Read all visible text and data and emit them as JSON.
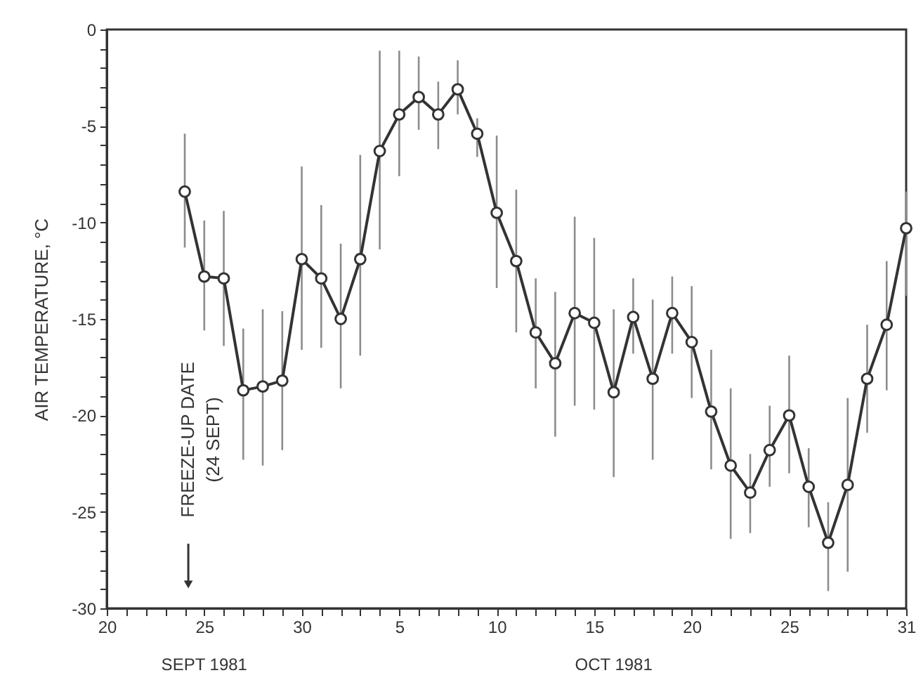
{
  "chart_data": {
    "type": "line",
    "ylabel": "AIR TEMPERATURE, °C",
    "x": [
      "1981-09-24",
      "1981-09-25",
      "1981-09-26",
      "1981-09-27",
      "1981-09-28",
      "1981-09-29",
      "1981-09-30",
      "1981-10-01",
      "1981-10-02",
      "1981-10-03",
      "1981-10-04",
      "1981-10-05",
      "1981-10-06",
      "1981-10-07",
      "1981-10-08",
      "1981-10-09",
      "1981-10-10",
      "1981-10-11",
      "1981-10-12",
      "1981-10-13",
      "1981-10-14",
      "1981-10-15",
      "1981-10-16",
      "1981-10-17",
      "1981-10-18",
      "1981-10-19",
      "1981-10-20",
      "1981-10-21",
      "1981-10-22",
      "1981-10-23",
      "1981-10-24",
      "1981-10-25",
      "1981-10-26",
      "1981-10-27",
      "1981-10-28",
      "1981-10-29",
      "1981-10-30",
      "1981-10-31"
    ],
    "series": [
      {
        "color": "#333333",
        "values": [
          -8.4,
          -12.8,
          -12.9,
          -18.7,
          -18.5,
          -18.2,
          -11.9,
          -12.9,
          -15.0,
          -11.9,
          -6.3,
          -4.4,
          -3.5,
          -4.4,
          -3.1,
          -5.4,
          -9.5,
          -12.0,
          -15.7,
          -17.3,
          -14.7,
          -15.2,
          -18.8,
          -14.9,
          -18.1,
          -14.7,
          -16.2,
          -19.8,
          -22.6,
          -24.0,
          -21.8,
          -20.0,
          -23.7,
          -26.6,
          -23.6,
          -18.1,
          -15.3,
          -10.3
        ],
        "errors": [
          [
            -11.3,
            -5.4
          ],
          [
            -15.6,
            -9.9
          ],
          [
            -16.4,
            -9.4
          ],
          [
            -22.3,
            -15.5
          ],
          [
            -22.6,
            -14.5
          ],
          [
            -21.8,
            -14.6
          ],
          [
            -16.6,
            -7.1
          ],
          [
            -16.5,
            -9.1
          ],
          [
            -18.6,
            -11.1
          ],
          [
            -16.9,
            -6.5
          ],
          [
            -11.4,
            -1.1
          ],
          [
            -7.6,
            -1.1
          ],
          [
            -5.2,
            -1.4
          ],
          [
            -6.2,
            -2.7
          ],
          [
            -4.4,
            -1.6
          ],
          [
            -6.6,
            -4.6
          ],
          [
            -13.4,
            -5.5
          ],
          [
            -15.7,
            -8.3
          ],
          [
            -18.6,
            -12.9
          ],
          [
            -21.1,
            -13.6
          ],
          [
            -19.5,
            -9.7
          ],
          [
            -19.7,
            -10.8
          ],
          [
            -23.2,
            -14.5
          ],
          [
            -16.8,
            -12.9
          ],
          [
            -22.3,
            -14.0
          ],
          [
            -16.8,
            -12.8
          ],
          [
            -19.1,
            -13.3
          ],
          [
            -22.8,
            -16.6
          ],
          [
            -26.4,
            -18.6
          ],
          [
            -26.1,
            -22.0
          ],
          [
            -23.7,
            -19.5
          ],
          [
            -23.0,
            -16.9
          ],
          [
            -25.8,
            -21.7
          ],
          [
            -29.1,
            -24.5
          ],
          [
            -28.1,
            -19.1
          ],
          [
            -20.9,
            -15.3
          ],
          [
            -18.7,
            -12.0
          ],
          [
            -13.8,
            -8.4
          ]
        ]
      }
    ],
    "marker": "circle",
    "line_style": "solid",
    "xlim": [
      "1981-09-20",
      "1981-10-31"
    ],
    "xticks": [
      {
        "value": "1981-09-20",
        "label": "20"
      },
      {
        "value": "1981-09-21",
        "label": null
      },
      {
        "value": "1981-09-22",
        "label": null
      },
      {
        "value": "1981-09-23",
        "label": null
      },
      {
        "value": "1981-09-24",
        "label": null
      },
      {
        "value": "1981-09-25",
        "label": "25"
      },
      {
        "value": "1981-09-26",
        "label": null
      },
      {
        "value": "1981-09-27",
        "label": null
      },
      {
        "value": "1981-09-28",
        "label": null
      },
      {
        "value": "1981-09-29",
        "label": null
      },
      {
        "value": "1981-09-30",
        "label": "30"
      },
      {
        "value": "1981-10-01",
        "label": null
      },
      {
        "value": "1981-10-02",
        "label": null
      },
      {
        "value": "1981-10-03",
        "label": null
      },
      {
        "value": "1981-10-04",
        "label": null
      },
      {
        "value": "1981-10-05",
        "label": "5"
      },
      {
        "value": "1981-10-06",
        "label": null
      },
      {
        "value": "1981-10-07",
        "label": null
      },
      {
        "value": "1981-10-08",
        "label": null
      },
      {
        "value": "1981-10-09",
        "label": null
      },
      {
        "value": "1981-10-10",
        "label": "10"
      },
      {
        "value": "1981-10-11",
        "label": null
      },
      {
        "value": "1981-10-12",
        "label": null
      },
      {
        "value": "1981-10-13",
        "label": null
      },
      {
        "value": "1981-10-14",
        "label": null
      },
      {
        "value": "1981-10-15",
        "label": "15"
      },
      {
        "value": "1981-10-16",
        "label": null
      },
      {
        "value": "1981-10-17",
        "label": null
      },
      {
        "value": "1981-10-18",
        "label": null
      },
      {
        "value": "1981-10-19",
        "label": null
      },
      {
        "value": "1981-10-20",
        "label": "20"
      },
      {
        "value": "1981-10-21",
        "label": null
      },
      {
        "value": "1981-10-22",
        "label": null
      },
      {
        "value": "1981-10-23",
        "label": null
      },
      {
        "value": "1981-10-24",
        "label": null
      },
      {
        "value": "1981-10-25",
        "label": "25"
      },
      {
        "value": "1981-10-26",
        "label": null
      },
      {
        "value": "1981-10-27",
        "label": null
      },
      {
        "value": "1981-10-28",
        "label": null
      },
      {
        "value": "1981-10-29",
        "label": null
      },
      {
        "value": "1981-10-30",
        "label": null
      },
      {
        "value": "1981-10-31",
        "label": "31"
      }
    ],
    "ylim": [
      -30,
      0
    ],
    "yticks": [
      -30,
      {
        "value": -29,
        "label": null
      },
      {
        "value": -28,
        "label": null
      },
      {
        "value": -27,
        "label": null
      },
      {
        "value": -26,
        "label": null
      },
      -25,
      {
        "value": -24,
        "label": null
      },
      {
        "value": -23,
        "label": null
      },
      {
        "value": -22,
        "label": null
      },
      {
        "value": -21,
        "label": null
      },
      -20,
      {
        "value": -19,
        "label": null
      },
      {
        "value": -18,
        "label": null
      },
      {
        "value": -17,
        "label": null
      },
      {
        "value": -16,
        "label": null
      },
      -15,
      {
        "value": -14,
        "label": null
      },
      {
        "value": -13,
        "label": null
      },
      {
        "value": -12,
        "label": null
      },
      {
        "value": -11,
        "label": null
      },
      -10,
      {
        "value": -9,
        "label": null
      },
      {
        "value": -8,
        "label": null
      },
      {
        "value": -7,
        "label": null
      },
      {
        "value": -6,
        "label": null
      },
      -5,
      {
        "value": -4,
        "label": null
      },
      {
        "value": -3,
        "label": null
      },
      {
        "value": -2,
        "label": null
      },
      {
        "value": -1,
        "label": null
      },
      0
    ],
    "annotations": [
      "FREEZE-UP DATE\n(24 SEPT)",
      "SEPT 1981",
      "OCT 1981"
    ]
  }
}
